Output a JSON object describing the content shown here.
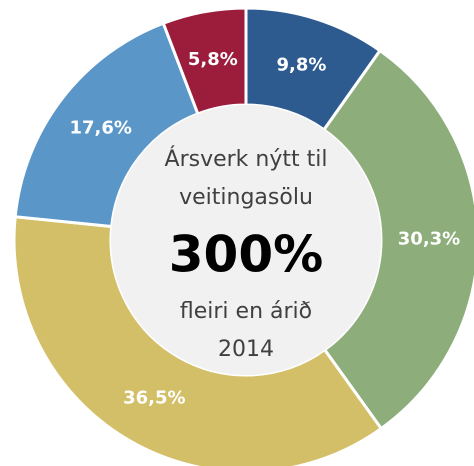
{
  "chart_data": {
    "type": "donut",
    "categories": [
      null,
      null,
      null,
      null,
      null
    ],
    "values": [
      9.8,
      30.3,
      36.5,
      17.6,
      5.8
    ],
    "value_labels": [
      "9,8%",
      "30,3%",
      "36,5%",
      "17,6%",
      "5,8%"
    ],
    "colors": [
      "#2e5b8f",
      "#8dad7b",
      "#d4bf69",
      "#5a97c8",
      "#9b1c3b"
    ],
    "center_text_top": [
      "Ársverk nýtt til",
      "veitingasölu"
    ],
    "center_value": "300%",
    "center_text_bottom": [
      "fleiri en árið",
      "2014"
    ]
  }
}
